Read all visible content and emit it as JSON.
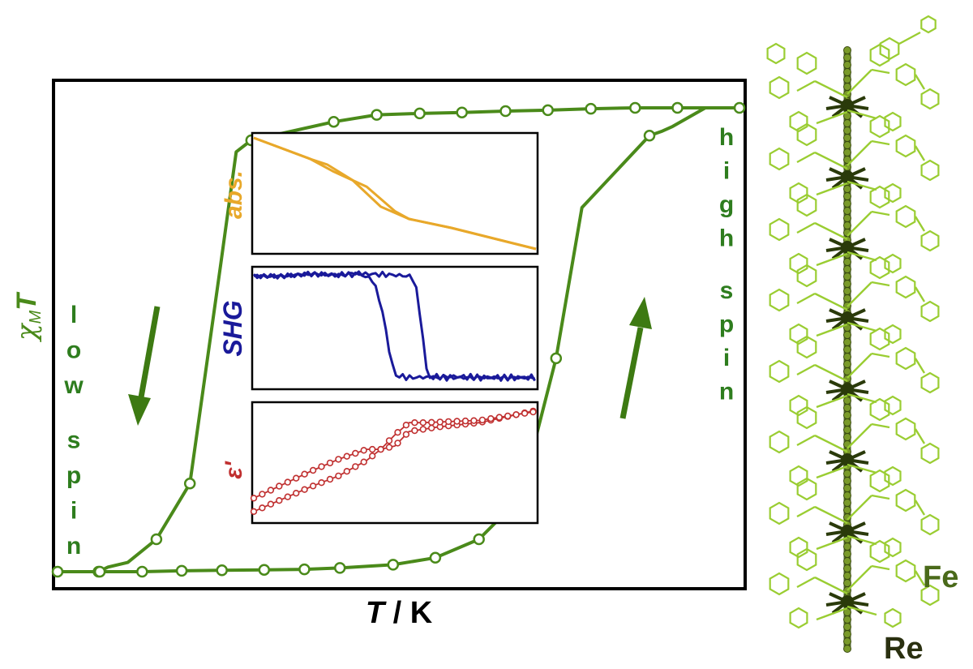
{
  "colors": {
    "main": "#4a8a1a",
    "annotation": "#2e7d1e",
    "abs": "#e8a82a",
    "shg": "#1a1a9a",
    "eps": "#c03030",
    "frame": "#000000",
    "chain_light": "#9acd32",
    "chain_dark": "#2a3a0a",
    "fe_label": "#4a6a1a",
    "re_label": "#2a3010"
  },
  "main_plot": {
    "ylabel": "χMT",
    "ylabel_base": "χ",
    "ylabel_sub": "M",
    "ylabel_tail": "T",
    "xlabel": "T / K",
    "xlabel_var": "T",
    "xlabel_unit": " / K",
    "left_note": [
      "l",
      "o",
      "w",
      "s",
      "p",
      "i",
      "n"
    ],
    "right_note": [
      "h",
      "i",
      "g",
      "h",
      "s",
      "p",
      "i",
      "n"
    ],
    "arrow_left_direction": "down",
    "arrow_right_direction": "up"
  },
  "insets": {
    "abs_label": "abs.",
    "shg_label": "SHG",
    "eps_label": "ε'"
  },
  "structure": {
    "fe_label": "Fe",
    "re_label": "Re"
  },
  "chart_data": [
    {
      "type": "line",
      "name": "main-hysteresis",
      "xlim": [
        0,
        100
      ],
      "ylim": [
        0,
        1
      ],
      "axis_ticks": false,
      "series": [
        {
          "direction": "cooling",
          "x": [
            100,
            90.9,
            84.7,
            78.2,
            71.9,
            65.7,
            59.3,
            53.1,
            46.8,
            40.5,
            28.4,
            26.2,
            23.9,
            19.4,
            14.5,
            10.3,
            7.4,
            6.0,
            0.0
          ],
          "y": [
            1.0,
            1.0,
            1.0,
            0.998,
            0.995,
            0.993,
            0.99,
            0.988,
            0.985,
            0.97,
            0.93,
            0.905,
            0.66,
            0.19,
            0.07,
            0.02,
            0.01,
            0.0,
            0.0
          ]
        },
        {
          "direction": "warming",
          "x": [
            0,
            6.2,
            12.4,
            18.2,
            24.1,
            30.3,
            36.2,
            41.4,
            49.2,
            55.4,
            61.8,
            67.9,
            73.1,
            76.9,
            86.8,
            88.7,
            90.2,
            95.0,
            100
          ],
          "y": [
            0.0,
            0.0,
            0.0,
            0.002,
            0.003,
            0.004,
            0.005,
            0.008,
            0.015,
            0.03,
            0.07,
            0.16,
            0.46,
            0.785,
            0.94,
            0.95,
            0.96,
            1.0,
            1.0
          ]
        }
      ],
      "markers_cooling_x": [
        90.9,
        84.7,
        78.2,
        71.9,
        65.7,
        59.3,
        53.1,
        46.8,
        40.5,
        28.4,
        19.4,
        14.5,
        6.0,
        0.0
      ],
      "markers_warming_x": [
        6.2,
        12.4,
        18.2,
        24.1,
        30.3,
        36.2,
        41.4,
        49.2,
        55.4,
        61.8,
        73.1,
        86.8,
        100
      ]
    },
    {
      "type": "line",
      "name": "abs",
      "xlim": [
        0,
        100
      ],
      "ylim": [
        0,
        1
      ],
      "series": [
        {
          "direction": "cooling",
          "x": [
            0,
            20,
            26,
            35,
            45,
            55,
            70,
            100
          ],
          "y": [
            1.0,
            0.81,
            0.76,
            0.62,
            0.38,
            0.27,
            0.19,
            0.0
          ]
        },
        {
          "direction": "warming",
          "x": [
            0,
            20,
            28,
            40,
            50,
            55,
            70,
            100
          ],
          "y": [
            1.0,
            0.81,
            0.7,
            0.56,
            0.34,
            0.27,
            0.19,
            0.0
          ]
        }
      ]
    },
    {
      "type": "line",
      "name": "SHG",
      "xlim": [
        0,
        100
      ],
      "ylim": [
        0,
        1
      ],
      "series": [
        {
          "direction": "cooling",
          "x": [
            0,
            10,
            20,
            30,
            37,
            40,
            42,
            44,
            46,
            48,
            50,
            55,
            70,
            85,
            100
          ],
          "y": [
            0.96,
            0.96,
            0.98,
            0.97,
            0.99,
            0.95,
            0.93,
            0.8,
            0.6,
            0.3,
            0.08,
            0.06,
            0.07,
            0.06,
            0.06
          ]
        },
        {
          "direction": "warming",
          "x": [
            0,
            10,
            20,
            30,
            40,
            50,
            55,
            57,
            58.5,
            60,
            61,
            62,
            65,
            80,
            100
          ],
          "y": [
            0.96,
            0.96,
            0.98,
            0.97,
            0.98,
            0.97,
            0.96,
            0.93,
            0.7,
            0.4,
            0.15,
            0.07,
            0.06,
            0.06,
            0.06
          ]
        }
      ]
    },
    {
      "type": "line",
      "name": "epsilon",
      "xlim": [
        0,
        100
      ],
      "ylim": [
        0,
        1
      ],
      "series": [
        {
          "direction": "cooling",
          "x": [
            0,
            10,
            20,
            30,
            40,
            45,
            50,
            55,
            65,
            80,
            100
          ],
          "y": [
            0.18,
            0.3,
            0.42,
            0.53,
            0.62,
            0.62,
            0.65,
            0.78,
            0.82,
            0.86,
            0.97
          ]
        },
        {
          "direction": "warming",
          "x": [
            0,
            10,
            20,
            30,
            40,
            45,
            50,
            55,
            60,
            80,
            100
          ],
          "y": [
            0.06,
            0.17,
            0.28,
            0.38,
            0.52,
            0.62,
            0.75,
            0.86,
            0.86,
            0.88,
            0.96
          ]
        }
      ]
    }
  ]
}
